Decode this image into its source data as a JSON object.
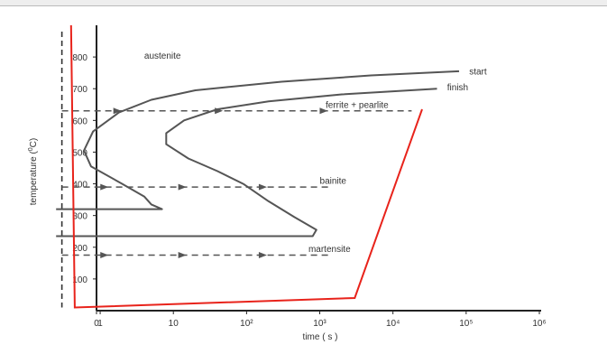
{
  "chart_data": {
    "type": "line",
    "title": "",
    "xlabel": "time ( s )",
    "ylabel_prefix": "temperature (",
    "ylabel_sup": "0",
    "ylabel_suffix": "C)",
    "x_scale": "log",
    "xlim": [
      0,
      1000000
    ],
    "ylim": [
      0,
      900
    ],
    "x_ticks": [
      {
        "value": 0,
        "label": "0"
      },
      {
        "value": 1,
        "label": "1"
      },
      {
        "value": 10,
        "label": "10"
      },
      {
        "value": 100,
        "label": "10²"
      },
      {
        "value": 1000,
        "label": "10³"
      },
      {
        "value": 10000,
        "label": "10⁴"
      },
      {
        "value": 100000,
        "label": "10⁵"
      },
      {
        "value": 1000000,
        "label": "10⁶"
      }
    ],
    "y_ticks": [
      100,
      200,
      300,
      400,
      500,
      600,
      700,
      800
    ],
    "grid": false,
    "legend": "none",
    "curves": [
      {
        "label": "start",
        "color": "#555555",
        "points": [
          [
            80000,
            755
          ],
          [
            5000,
            742
          ],
          [
            300,
            722
          ],
          [
            20,
            695
          ],
          [
            5,
            665
          ],
          [
            1.8,
            625
          ],
          [
            0.8,
            565
          ],
          [
            0.6,
            505
          ],
          [
            0.75,
            455
          ],
          [
            2,
            400
          ],
          [
            4,
            360
          ],
          [
            5,
            335
          ],
          [
            7,
            320
          ],
          [
            0.25,
            320
          ]
        ]
      },
      {
        "label": "finish",
        "color": "#555555",
        "points": [
          [
            40000,
            700
          ],
          [
            2000,
            682
          ],
          [
            200,
            660
          ],
          [
            40,
            635
          ],
          [
            14,
            600
          ],
          [
            8,
            560
          ],
          [
            8,
            525
          ],
          [
            16,
            480
          ],
          [
            40,
            440
          ],
          [
            90,
            400
          ],
          [
            200,
            345
          ],
          [
            450,
            295
          ],
          [
            900,
            255
          ],
          [
            800,
            235
          ],
          [
            0.25,
            235
          ]
        ]
      }
    ],
    "cooling_paths": [
      {
        "name": "ferrite + pearlite",
        "color": "#555555",
        "y": 630,
        "x_to": 18000
      },
      {
        "name": "bainite",
        "color": "#555555",
        "y": 390,
        "x_to": 1400
      },
      {
        "name": "martensite",
        "color": "#555555",
        "y": 175,
        "x_to": 1400
      }
    ],
    "quench_line": {
      "color": "#333333",
      "x": 0.3,
      "y_from": 880,
      "y_to": 10
    },
    "red_path": {
      "color": "#e8231b",
      "points": [
        [
          0.4,
          900
        ],
        [
          0.45,
          10
        ],
        [
          3000,
          40
        ],
        [
          25000,
          635
        ]
      ]
    },
    "annotations": [
      {
        "text": "austenite",
        "x": 4,
        "y": 795
      },
      {
        "text": "start",
        "x": 110000,
        "y": 745
      },
      {
        "text": "finish",
        "x": 55000,
        "y": 695
      },
      {
        "text": "ferrite + pearlite",
        "x": 1200,
        "y": 640
      },
      {
        "text": "bainite",
        "x": 1000,
        "y": 400
      },
      {
        "text": "martensite",
        "x": 700,
        "y": 185
      }
    ]
  }
}
